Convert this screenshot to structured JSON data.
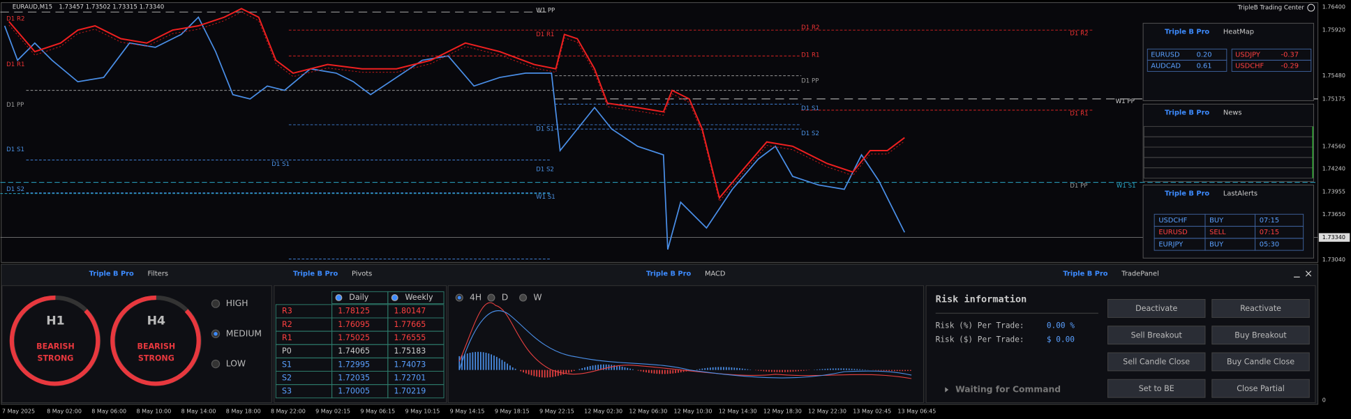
{
  "header": {
    "symbol": "EURAUD,M15",
    "ohlc": "1.73457 1.73502 1.73315 1.73340",
    "center": "TripleB Trading Center"
  },
  "brand": "Triple B Pro",
  "chart_levels": [
    "W1 PP",
    "D1 R2",
    "D1 R1",
    "D1 PP",
    "D1 S1",
    "D1 S2",
    "W1 S1"
  ],
  "price_axis": [
    "1.76400",
    "1.75920",
    "1.75480",
    "1.75175",
    "1.74560",
    "1.74240",
    "1.73955",
    "1.73650",
    "1.73340",
    "1.73040",
    "0"
  ],
  "time_axis": [
    "7 May 2025",
    "8 May 02:00",
    "8 May 06:00",
    "8 May 10:00",
    "8 May 14:00",
    "8 May 18:00",
    "8 May 22:00",
    "9 May 02:15",
    "9 May 06:15",
    "9 May 10:15",
    "9 May 14:15",
    "9 May 18:15",
    "9 May 22:15",
    "12 May 02:30",
    "12 May 06:30",
    "12 May 10:30",
    "12 May 14:30",
    "12 May 18:30",
    "12 May 22:30",
    "13 May 02:45",
    "13 May 06:45"
  ],
  "heatmap": {
    "title": "HeatMap",
    "rows": [
      [
        "EURUSD",
        "0.20",
        "USDJPY",
        "-0.37"
      ],
      [
        "AUDCAD",
        "0.61",
        "USDCHF",
        "-0.29"
      ]
    ]
  },
  "news": {
    "title": "News"
  },
  "last_alerts": {
    "title": "LastAlerts",
    "rows": [
      [
        "USDCHF",
        "BUY",
        "07:15"
      ],
      [
        "EURUSD",
        "SELL",
        "07:15"
      ],
      [
        "EURJPY",
        "BUY",
        "05:30"
      ]
    ]
  },
  "filters": {
    "title": "Filters",
    "gauges": [
      {
        "tf": "H1",
        "status": "BEARISH STRONG"
      },
      {
        "tf": "H4",
        "status": "BEARISH STRONG"
      }
    ],
    "options": [
      "HIGH",
      "MEDIUM",
      "LOW"
    ]
  },
  "pivots": {
    "title": "Pivots",
    "header": [
      "Daily",
      "Weekly"
    ],
    "rows": [
      [
        "R3",
        "1.78125",
        "1.80147"
      ],
      [
        "R2",
        "1.76095",
        "1.77665"
      ],
      [
        "R1",
        "1.75025",
        "1.76555"
      ],
      [
        "P0",
        "1.74065",
        "1.75183"
      ],
      [
        "S1",
        "1.72995",
        "1.74073"
      ],
      [
        "S2",
        "1.72035",
        "1.72701"
      ],
      [
        "S3",
        "1.70005",
        "1.70219"
      ]
    ]
  },
  "macd": {
    "title": "MACD",
    "timeframes": [
      "4H",
      "D",
      "W"
    ]
  },
  "trade_panel": {
    "title": "TradePanel",
    "risk_title": "Risk information",
    "risk_lines": [
      [
        "Risk (%) Per Trade:",
        "0.00 %"
      ],
      [
        "Risk ($) Per Trade:",
        "$ 0.00"
      ]
    ],
    "buttons": [
      "Deactivate",
      "Reactivate",
      "Sell Breakout",
      "Buy Breakout",
      "Sell Candle Close",
      "Buy Candle Close",
      "Set to BE",
      "Close Partial"
    ],
    "status": "Waiting for Command"
  }
}
